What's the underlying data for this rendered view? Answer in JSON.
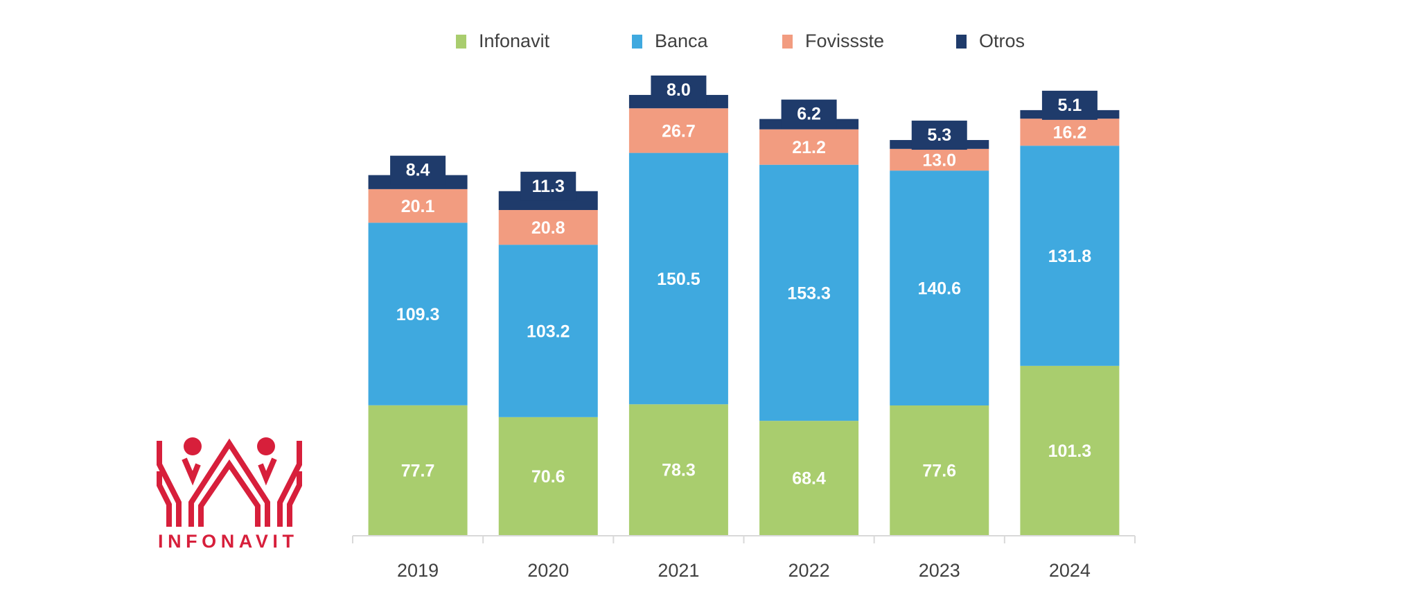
{
  "chart_data": {
    "type": "bar",
    "stacked": true,
    "categories": [
      "2019",
      "2020",
      "2021",
      "2022",
      "2023",
      "2024"
    ],
    "series": [
      {
        "name": "Infonavit",
        "color": "#a9cd6e",
        "values": [
          77.7,
          70.6,
          78.3,
          68.4,
          77.6,
          101.3
        ]
      },
      {
        "name": "Banca",
        "color": "#3fa9df",
        "values": [
          109.3,
          103.2,
          150.5,
          153.3,
          140.6,
          131.8
        ]
      },
      {
        "name": "Fovissste",
        "color": "#f29c80",
        "values": [
          20.1,
          20.8,
          26.7,
          21.2,
          13.0,
          16.2
        ]
      },
      {
        "name": "Otros",
        "color": "#1f3b6b",
        "values": [
          8.4,
          11.3,
          8.0,
          6.2,
          5.3,
          5.1
        ]
      }
    ],
    "title": "",
    "xlabel": "",
    "ylabel": "",
    "ylim": [
      0,
      270
    ],
    "grid": false,
    "legend": "top",
    "data_labels": true
  },
  "logo": {
    "text": "INFONAVIT",
    "color": "#d71f3b"
  }
}
